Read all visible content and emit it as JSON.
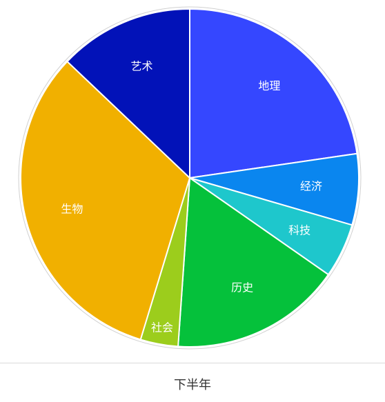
{
  "chart_data": {
    "type": "pie",
    "categories": [
      "地理",
      "经济",
      "科技",
      "历史",
      "社会",
      "生物",
      "艺术"
    ],
    "values": [
      22.7,
      6.8,
      5.2,
      16.4,
      3.6,
      32.4,
      12.9
    ],
    "colors": [
      "#3547ff",
      "#0a86ef",
      "#1ec7cc",
      "#05c13b",
      "#9ccd1c",
      "#f1b000",
      "#0212b8"
    ],
    "start_angle_deg": 0,
    "direction": "clockwise",
    "legend": "none"
  },
  "footer": {
    "label": "下半年"
  }
}
